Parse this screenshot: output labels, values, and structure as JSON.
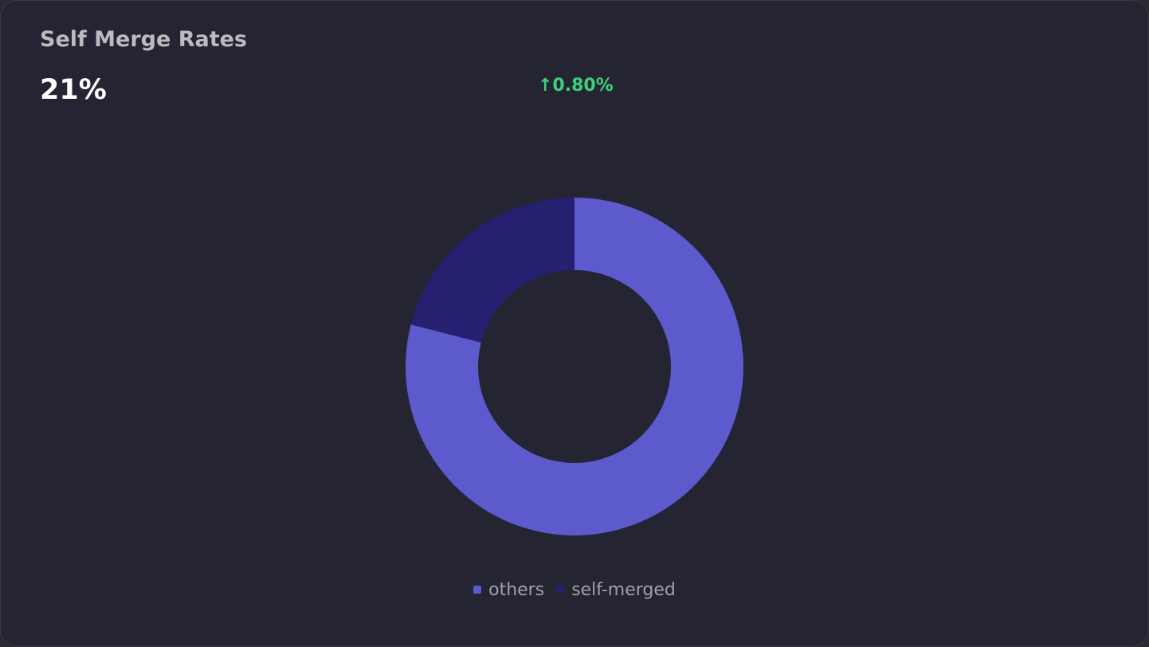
{
  "card": {
    "title": "Self Merge Rates",
    "value": "21%",
    "delta": "↑0.80%",
    "delta_color": "#3ecf7d"
  },
  "legend": [
    {
      "label": "others",
      "color": "#5d5acd"
    },
    {
      "label": "self-merged",
      "color": "#252170"
    }
  ],
  "chart_data": {
    "type": "pie",
    "variant": "donut",
    "title": "Self Merge Rates",
    "categories": [
      "others",
      "self-merged"
    ],
    "values": [
      79,
      21
    ],
    "unit": "%",
    "colors": [
      "#5d5acd",
      "#252170"
    ],
    "legend_position": "bottom",
    "summary_value": "21%",
    "change": "+0.80%"
  }
}
